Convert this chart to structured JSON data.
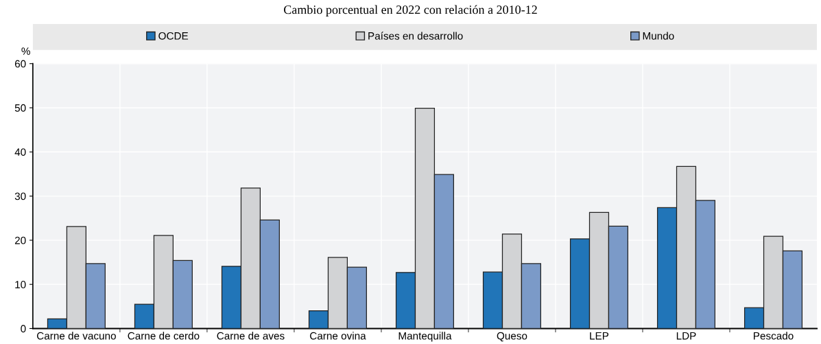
{
  "chart_data": {
    "type": "bar",
    "title": "Cambio porcentual en 2022 con relación a 2010-12",
    "ylabel": "%",
    "categories": [
      "Carne de vacuno",
      "Carne de cerdo",
      "Carne de aves",
      "Carne ovina",
      "Mantequilla",
      "Queso",
      "LEP",
      "LDP",
      "Pescado"
    ],
    "series": [
      {
        "name": "OCDE",
        "color": "#2175b8",
        "values": [
          2.2,
          5.5,
          14.1,
          4.0,
          12.7,
          12.8,
          20.3,
          27.4,
          4.7
        ]
      },
      {
        "name": "Países en desarrollo",
        "color": "#d2d3d5",
        "values": [
          23.1,
          21.1,
          31.8,
          16.1,
          49.9,
          21.4,
          26.3,
          36.7,
          20.9
        ]
      },
      {
        "name": "Mundo",
        "color": "#7b9ac8",
        "values": [
          14.7,
          15.4,
          24.6,
          13.9,
          34.9,
          14.7,
          23.2,
          29.0,
          17.6
        ]
      }
    ],
    "ylim": [
      0,
      60
    ],
    "yticks": [
      0,
      10,
      20,
      30,
      40,
      50,
      60
    ],
    "grid": true,
    "legend": "top"
  }
}
